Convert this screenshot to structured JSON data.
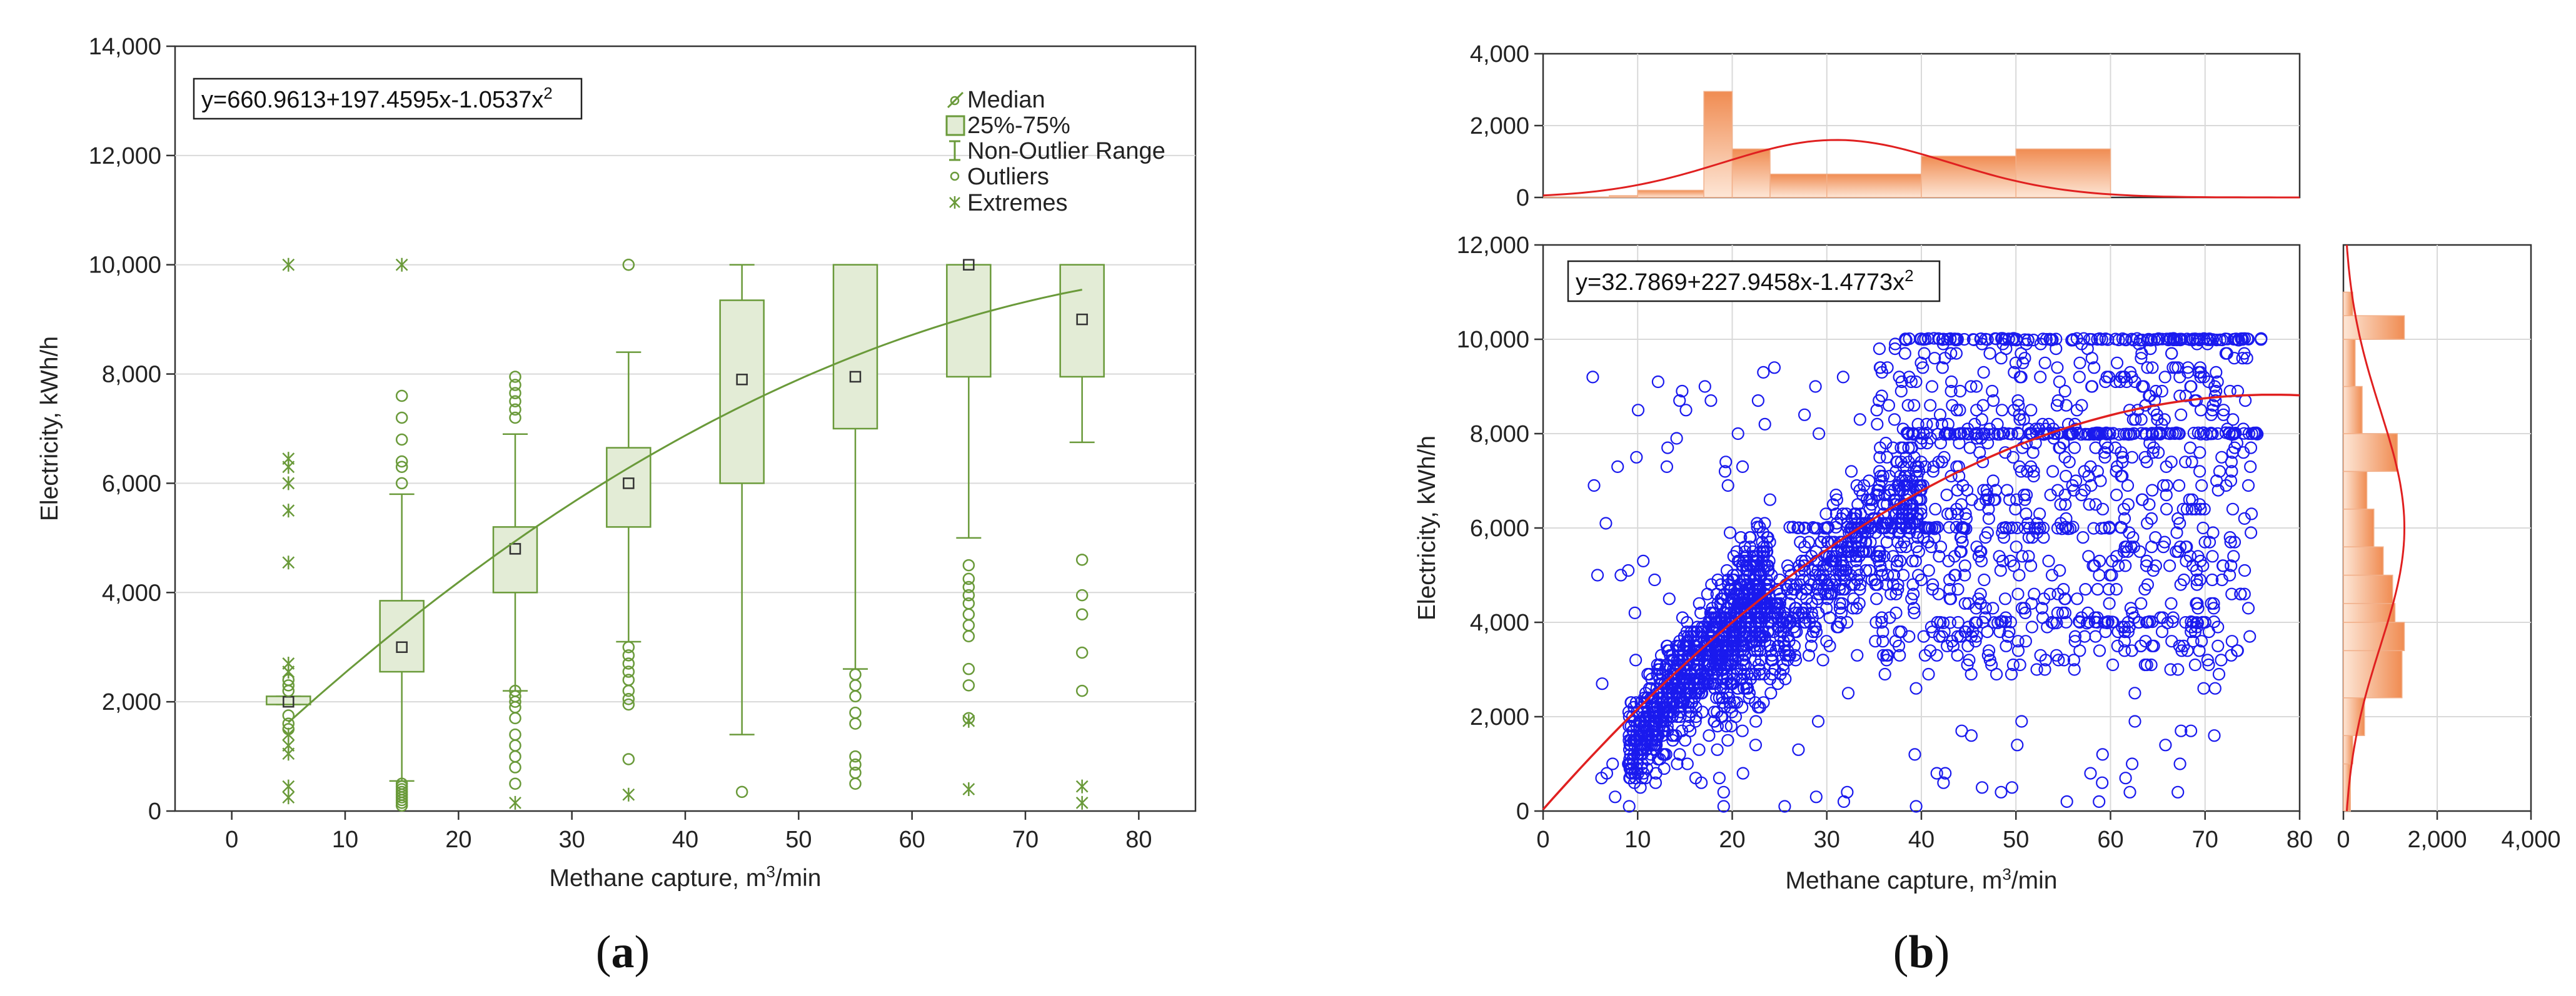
{
  "chart_data": [
    {
      "id": "a",
      "type": "boxplot",
      "caption_open": "(",
      "caption_letter": "a",
      "caption_close": ")",
      "title": "",
      "xlabel_pre": "Methane capture, m",
      "xlabel_sup": "3",
      "xlabel_post": "/min",
      "ylabel": "Electricity, kWh/h",
      "xlim": [
        -5,
        85
      ],
      "ylim": [
        0,
        14000
      ],
      "xticks": [
        0,
        10,
        20,
        30,
        40,
        50,
        60,
        70,
        80
      ],
      "xtick_labels": [
        "0",
        "10",
        "20",
        "30",
        "40",
        "50",
        "60",
        "70",
        "80"
      ],
      "yticks": [
        0,
        2000,
        4000,
        6000,
        8000,
        10000,
        12000,
        14000
      ],
      "ytick_labels": [
        "0",
        "2,000",
        "4,000",
        "6,000",
        "8,000",
        "10,000",
        "12,000",
        "14,000"
      ],
      "equation_main": "y=660.9613+197.4595x-1.0537x",
      "equation_sup": "2",
      "fit": {
        "a": 660.9613,
        "b": 197.4595,
        "c": -1.0537,
        "x_range": [
          5,
          75
        ]
      },
      "legend": [
        "Median",
        "25%-75%",
        "Non-Outlier Range",
        "Outliers",
        "Extremes"
      ],
      "color": "#6a9a3a",
      "boxes": [
        {
          "x": 5,
          "q1": 1950,
          "q3": 2100,
          "median": 2000,
          "lo": 1950,
          "hi": 2100,
          "outliers": [
            1500,
            1600,
            1750,
            2200,
            2300,
            2400
          ],
          "extremes": [
            250,
            450,
            1050,
            1200,
            1400,
            2550,
            2700,
            4550,
            5500,
            6000,
            6300,
            6450,
            10000
          ]
        },
        {
          "x": 15,
          "q1": 2550,
          "q3": 3850,
          "median": 3000,
          "lo": 550,
          "hi": 5800,
          "outliers": [
            100,
            150,
            200,
            250,
            300,
            350,
            400,
            450,
            500,
            6000,
            6300,
            6400,
            6800,
            7200,
            7600
          ],
          "extremes": [
            10000
          ]
        },
        {
          "x": 25,
          "q1": 4000,
          "q3": 5200,
          "median": 4800,
          "lo": 2200,
          "hi": 6900,
          "outliers": [
            500,
            800,
            1000,
            1200,
            1400,
            1700,
            1900,
            2000,
            2100,
            2200,
            7200,
            7350,
            7500,
            7650,
            7800,
            7950
          ],
          "extremes": [
            150
          ]
        },
        {
          "x": 35,
          "q1": 5200,
          "q3": 6650,
          "median": 6000,
          "lo": 3100,
          "hi": 8400,
          "outliers": [
            950,
            1950,
            2050,
            2200,
            2400,
            2550,
            2700,
            2850,
            3000,
            10000
          ],
          "extremes": [
            300
          ]
        },
        {
          "x": 45,
          "q1": 6000,
          "q3": 9350,
          "median": 7900,
          "lo": 1400,
          "hi": 10000,
          "outliers": [
            350
          ],
          "extremes": []
        },
        {
          "x": 55,
          "q1": 7000,
          "q3": 10000,
          "median": 7950,
          "lo": 2600,
          "hi": 10000,
          "outliers": [
            500,
            700,
            850,
            1000,
            1600,
            1800,
            2100,
            2300,
            2500
          ],
          "extremes": []
        },
        {
          "x": 65,
          "q1": 7950,
          "q3": 10000,
          "median": 10000,
          "lo": 5000,
          "hi": 10000,
          "outliers": [
            1700,
            2300,
            2600,
            3200,
            3400,
            3600,
            3800,
            3950,
            4100,
            4250,
            4500
          ],
          "extremes": [
            400,
            1650
          ]
        },
        {
          "x": 75,
          "q1": 7950,
          "q3": 10000,
          "median": 9000,
          "lo": 6750,
          "hi": 10000,
          "outliers": [
            2200,
            2900,
            3600,
            3950,
            4600
          ],
          "extremes": [
            150,
            450
          ]
        }
      ]
    },
    {
      "id": "b",
      "type": "scatter",
      "caption_open": "(",
      "caption_letter": "b",
      "caption_close": ")",
      "title": "",
      "xlabel_pre": "Methane capture, m",
      "xlabel_sup": "3",
      "xlabel_post": "/min",
      "ylabel": "Electricity, kWh/h",
      "xlim": [
        0,
        80
      ],
      "ylim": [
        0,
        12000
      ],
      "xticks": [
        0,
        10,
        20,
        30,
        40,
        50,
        60,
        70,
        80
      ],
      "xtick_labels": [
        "0",
        "10",
        "20",
        "30",
        "40",
        "50",
        "60",
        "70",
        "80"
      ],
      "yticks": [
        0,
        2000,
        4000,
        6000,
        8000,
        10000,
        12000
      ],
      "ytick_labels": [
        "0",
        "2,000",
        "4,000",
        "6,000",
        "8,000",
        "10,000",
        "12,000"
      ],
      "equation_main": "y=32.7869+227.9458x-1.4773x",
      "equation_sup": "2",
      "fit": {
        "a": 32.7869,
        "b": 227.9458,
        "c": -1.4773,
        "x_range": [
          0,
          80
        ]
      },
      "point_color": "#1a1aee",
      "fit_color": "#e02020",
      "approx_point_count": 2600,
      "point_clusters": [
        {
          "x": [
            9,
            24
          ],
          "y": [
            1200,
            5200
          ],
          "weight": 0.3,
          "trend": true
        },
        {
          "x": [
            18,
            40
          ],
          "y": [
            2500,
            7000
          ],
          "weight": 0.22,
          "trend": true
        },
        {
          "x": [
            35,
            75
          ],
          "y": [
            3000,
            10000
          ],
          "weight": 0.26
        },
        {
          "x": [
            5,
            72
          ],
          "y": [
            0,
            10000
          ],
          "weight": 0.08
        }
      ],
      "point_bands": [
        {
          "y": 10000,
          "x": [
            38,
            76
          ],
          "weight": 0.05
        },
        {
          "y": 8000,
          "x": [
            38,
            76
          ],
          "weight": 0.05
        },
        {
          "y": 6000,
          "x": [
            22,
            62
          ],
          "weight": 0.025
        },
        {
          "y": 4000,
          "x": [
            42,
            71
          ],
          "weight": 0.015
        }
      ],
      "top_histogram": {
        "axis_ylim": [
          0,
          4000
        ],
        "yticks": [
          0,
          2000,
          4000
        ],
        "ytick_labels": [
          "0",
          "2,000",
          "4,000"
        ],
        "bin_edges": [
          0,
          7,
          10,
          17,
          20,
          24,
          30,
          40,
          50,
          60
        ],
        "counts": [
          10,
          50,
          200,
          2950,
          1350,
          650,
          650,
          1150,
          1350
        ],
        "normal_curve": {
          "mean": 31,
          "sd": 12,
          "peak": 1600
        }
      },
      "right_histogram": {
        "axis_xlim": [
          0,
          4000
        ],
        "xticks": [
          0,
          2000,
          4000
        ],
        "xtick_labels": [
          "0",
          "2,000",
          "4,000"
        ],
        "bin_edges": [
          0,
          1000,
          1600,
          2400,
          3400,
          4000,
          4400,
          5000,
          5600,
          6400,
          7200,
          8000,
          9000,
          10000,
          10500,
          11000
        ],
        "counts": [
          150,
          200,
          450,
          1250,
          1300,
          1100,
          1050,
          850,
          650,
          500,
          1150,
          400,
          250,
          1300,
          200
        ],
        "normal_curve": {
          "mean": 6000,
          "sd": 2500,
          "peak": 1300
        }
      }
    }
  ]
}
